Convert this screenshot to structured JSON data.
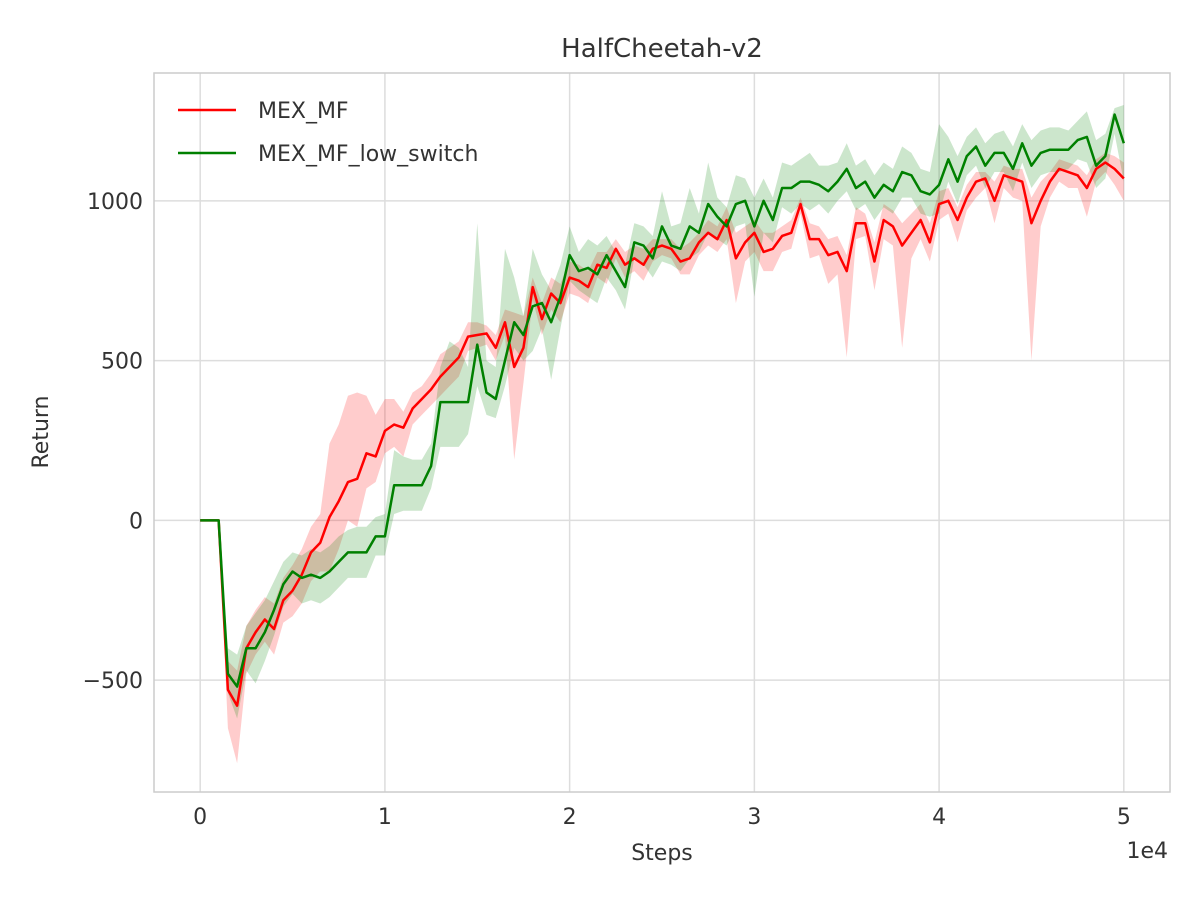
{
  "chart_data": {
    "type": "line",
    "title": "HalfCheetah-v2",
    "xlabel": "Steps",
    "ylabel": "Return",
    "x_offset_label": "1e4",
    "xlim": [
      -2500,
      52500
    ],
    "ylim": [
      -850,
      1400
    ],
    "x_ticks": [
      0,
      10000,
      20000,
      30000,
      40000,
      50000
    ],
    "x_tick_labels": [
      "0",
      "1",
      "2",
      "3",
      "4",
      "5"
    ],
    "y_ticks": [
      -500,
      0,
      500,
      1000
    ],
    "y_tick_labels": [
      "−500",
      "0",
      "500",
      "1000"
    ],
    "grid": true,
    "legend_position": "top-left",
    "x": [
      0,
      1000,
      1500,
      2000,
      2500,
      3000,
      3500,
      4000,
      4500,
      5000,
      5500,
      6000,
      6500,
      7000,
      7500,
      8000,
      8500,
      9000,
      9500,
      10000,
      10500,
      11000,
      11500,
      12000,
      12500,
      13000,
      13500,
      14000,
      14500,
      15000,
      15500,
      16000,
      16500,
      17000,
      17500,
      18000,
      18500,
      19000,
      19500,
      20000,
      20500,
      21000,
      21500,
      22000,
      22500,
      23000,
      23500,
      24000,
      24500,
      25000,
      25500,
      26000,
      26500,
      27000,
      27500,
      28000,
      28500,
      29000,
      29500,
      30000,
      30500,
      31000,
      31500,
      32000,
      32500,
      33000,
      33500,
      34000,
      34500,
      35000,
      35500,
      36000,
      36500,
      37000,
      37500,
      38000,
      38500,
      39000,
      39500,
      40000,
      40500,
      41000,
      41500,
      42000,
      42500,
      43000,
      43500,
      44000,
      44500,
      45000,
      45500,
      46000,
      46500,
      47000,
      47500,
      48000,
      48500,
      49000,
      49500,
      50000
    ],
    "series": [
      {
        "name": "MEX_MF",
        "color": "#ff0000",
        "values": [
          0,
          0,
          -530,
          -580,
          -400,
          -350,
          -310,
          -340,
          -250,
          -220,
          -170,
          -100,
          -70,
          10,
          60,
          120,
          130,
          210,
          200,
          280,
          300,
          290,
          350,
          380,
          410,
          450,
          480,
          510,
          575,
          580,
          585,
          540,
          620,
          480,
          540,
          730,
          630,
          710,
          680,
          760,
          750,
          730,
          800,
          790,
          850,
          800,
          820,
          800,
          850,
          860,
          850,
          810,
          820,
          870,
          900,
          880,
          940,
          820,
          870,
          900,
          840,
          850,
          890,
          900,
          990,
          880,
          880,
          830,
          840,
          780,
          930,
          930,
          810,
          940,
          920,
          860,
          900,
          940,
          870,
          990,
          1000,
          940,
          1010,
          1060,
          1070,
          1000,
          1080,
          1070,
          1060,
          930,
          1000,
          1060,
          1100,
          1090,
          1080,
          1040,
          1100,
          1120,
          1100,
          1070
        ],
        "upper": [
          0,
          0,
          -440,
          -470,
          -330,
          -280,
          -240,
          -260,
          -180,
          -140,
          -90,
          -20,
          20,
          240,
          300,
          390,
          400,
          390,
          330,
          380,
          380,
          340,
          400,
          420,
          460,
          520,
          540,
          560,
          620,
          620,
          610,
          580,
          660,
          650,
          640,
          760,
          680,
          760,
          740,
          810,
          800,
          780,
          840,
          840,
          880,
          840,
          860,
          850,
          880,
          880,
          880,
          850,
          870,
          900,
          940,
          920,
          980,
          900,
          920,
          940,
          900,
          900,
          920,
          940,
          1010,
          930,
          920,
          880,
          890,
          830,
          980,
          960,
          870,
          990,
          970,
          930,
          960,
          990,
          930,
          1030,
          1040,
          980,
          1050,
          1090,
          1090,
          1060,
          1110,
          1100,
          1100,
          1010,
          1060,
          1090,
          1130,
          1120,
          1110,
          1080,
          1130,
          1150,
          1140,
          1120
        ],
        "lower": [
          0,
          0,
          -650,
          -760,
          -480,
          -420,
          -380,
          -420,
          -320,
          -300,
          -260,
          -190,
          -160,
          -160,
          -90,
          0,
          -20,
          100,
          120,
          210,
          230,
          200,
          300,
          330,
          360,
          390,
          420,
          450,
          530,
          540,
          550,
          500,
          580,
          190,
          430,
          690,
          580,
          660,
          620,
          710,
          700,
          680,
          760,
          740,
          820,
          760,
          780,
          750,
          810,
          830,
          820,
          770,
          770,
          830,
          860,
          840,
          880,
          680,
          810,
          840,
          780,
          780,
          840,
          850,
          960,
          820,
          830,
          740,
          770,
          510,
          880,
          890,
          720,
          880,
          860,
          540,
          820,
          880,
          810,
          940,
          960,
          870,
          970,
          1010,
          1040,
          930,
          1040,
          1010,
          1000,
          500,
          920,
          1010,
          1060,
          1040,
          1040,
          950,
          1060,
          1090,
          1050,
          1000
        ]
      },
      {
        "name": "MEX_MF_low_switch",
        "color": "#008000",
        "values": [
          0,
          0,
          -480,
          -520,
          -400,
          -400,
          -350,
          -280,
          -200,
          -160,
          -180,
          -170,
          -180,
          -160,
          -130,
          -100,
          -100,
          -100,
          -50,
          -50,
          110,
          110,
          110,
          110,
          170,
          370,
          370,
          370,
          370,
          550,
          400,
          380,
          500,
          620,
          580,
          670,
          680,
          620,
          700,
          830,
          780,
          790,
          770,
          830,
          780,
          730,
          870,
          860,
          820,
          920,
          860,
          850,
          920,
          900,
          990,
          950,
          920,
          990,
          1000,
          920,
          1000,
          940,
          1040,
          1040,
          1060,
          1060,
          1050,
          1030,
          1060,
          1100,
          1040,
          1060,
          1010,
          1050,
          1030,
          1090,
          1080,
          1030,
          1020,
          1050,
          1130,
          1060,
          1140,
          1170,
          1110,
          1150,
          1150,
          1100,
          1180,
          1110,
          1150,
          1160,
          1160,
          1160,
          1190,
          1200,
          1110,
          1140,
          1270,
          1180
        ],
        "upper": [
          0,
          0,
          -400,
          -420,
          -330,
          -290,
          -250,
          -190,
          -130,
          -100,
          -110,
          -90,
          -100,
          -80,
          -50,
          -30,
          -20,
          -20,
          10,
          20,
          220,
          200,
          190,
          190,
          240,
          480,
          560,
          540,
          480,
          930,
          500,
          480,
          850,
          760,
          640,
          850,
          770,
          720,
          800,
          920,
          840,
          880,
          860,
          890,
          840,
          800,
          930,
          920,
          890,
          1030,
          920,
          930,
          1040,
          960,
          1120,
          1010,
          980,
          1080,
          1070,
          1010,
          1070,
          1010,
          1120,
          1110,
          1130,
          1150,
          1110,
          1110,
          1120,
          1180,
          1110,
          1130,
          1080,
          1120,
          1100,
          1170,
          1150,
          1100,
          1090,
          1240,
          1200,
          1140,
          1200,
          1230,
          1180,
          1210,
          1220,
          1170,
          1240,
          1190,
          1220,
          1230,
          1230,
          1220,
          1250,
          1280,
          1190,
          1210,
          1290,
          1300
        ],
        "lower": [
          0,
          0,
          -540,
          -620,
          -470,
          -510,
          -440,
          -360,
          -270,
          -230,
          -260,
          -250,
          -260,
          -240,
          -210,
          -180,
          -180,
          -180,
          -110,
          -110,
          20,
          30,
          30,
          30,
          100,
          230,
          230,
          230,
          270,
          420,
          330,
          320,
          420,
          540,
          500,
          530,
          600,
          440,
          600,
          750,
          720,
          700,
          680,
          760,
          720,
          660,
          820,
          800,
          760,
          810,
          800,
          780,
          820,
          840,
          900,
          880,
          860,
          920,
          930,
          700,
          900,
          870,
          980,
          960,
          990,
          970,
          990,
          960,
          1000,
          1030,
          970,
          990,
          940,
          980,
          960,
          1010,
          1010,
          960,
          950,
          960,
          1060,
          990,
          1080,
          1110,
          1040,
          1090,
          1090,
          1030,
          1120,
          1040,
          1080,
          1090,
          1090,
          1100,
          1130,
          1120,
          1040,
          1070,
          1210,
          1060
        ]
      }
    ]
  }
}
